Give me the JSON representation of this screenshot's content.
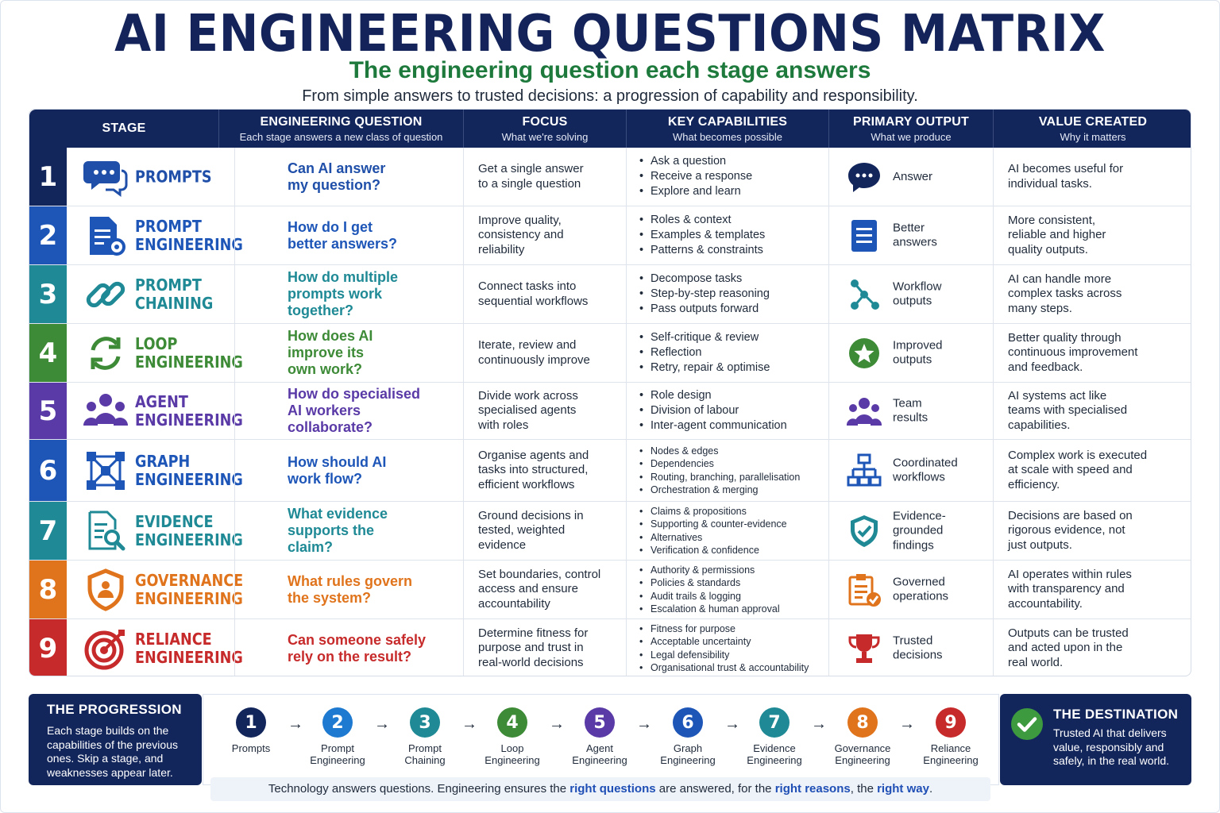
{
  "title": "AI ENGINEERING QUESTIONS MATRIX",
  "subtitle": "The engineering question each stage answers",
  "tagline": "From simple answers to trusted decisions: a progression of capability and responsibility.",
  "headers": [
    {
      "title": "STAGE",
      "sub": ""
    },
    {
      "title": "ENGINEERING QUESTION",
      "sub": "Each stage answers a new class of question"
    },
    {
      "title": "FOCUS",
      "sub": "What we're solving"
    },
    {
      "title": "KEY CAPABILITIES",
      "sub": "What becomes possible"
    },
    {
      "title": "PRIMARY OUTPUT",
      "sub": "What we produce"
    },
    {
      "title": "VALUE CREATED",
      "sub": "Why it matters"
    }
  ],
  "rows": [
    {
      "num": "1",
      "color": "#13265c",
      "accent": "#1f4fa8",
      "stage_icon": "chat-bubbles-icon",
      "stage": "PROMPTS",
      "question": "Can AI answer\nmy question?",
      "focus": "Get a single answer\nto a single question",
      "caps": [
        "Ask a question",
        "Receive a response",
        "Explore and learn"
      ],
      "output_icon": "chat-bubble-icon",
      "output": "Answer",
      "value": "AI becomes useful for\nindividual tasks."
    },
    {
      "num": "2",
      "color": "#1e56b8",
      "accent": "#1e56b8",
      "stage_icon": "document-gear-icon",
      "stage": "PROMPT\nENGINEERING",
      "question": "How do I get\nbetter answers?",
      "focus": "Improve quality,\nconsistency and\nreliability",
      "caps": [
        "Roles & context",
        "Examples & templates",
        "Patterns & constraints"
      ],
      "output_icon": "document-icon",
      "output": "Better\nanswers",
      "value": "More consistent,\nreliable and higher\nquality outputs."
    },
    {
      "num": "3",
      "color": "#1f8a95",
      "accent": "#1f8a95",
      "stage_icon": "chain-link-icon",
      "stage": "PROMPT\nCHAINING",
      "question": "How do multiple\nprompts work\ntogether?",
      "focus": "Connect tasks into\nsequential workflows",
      "caps": [
        "Decompose tasks",
        "Step-by-step reasoning",
        "Pass outputs forward"
      ],
      "output_icon": "workflow-nodes-icon",
      "output": "Workflow\noutputs",
      "value": "AI can handle more\ncomplex tasks across\nmany steps."
    },
    {
      "num": "4",
      "color": "#3d8a37",
      "accent": "#3d8a37",
      "stage_icon": "refresh-loop-icon",
      "stage": "LOOP\nENGINEERING",
      "question": "How does AI\nimprove its\nown work?",
      "focus": "Iterate, review and\ncontinuously improve",
      "caps": [
        "Self-critique & review",
        "Reflection",
        "Retry, repair & optimise"
      ],
      "output_icon": "star-badge-icon",
      "output": "Improved\noutputs",
      "value": "Better quality through\ncontinuous improvement\nand feedback."
    },
    {
      "num": "5",
      "color": "#5a3aa6",
      "accent": "#5a3aa6",
      "stage_icon": "team-people-icon",
      "stage": "AGENT\nENGINEERING",
      "question": "How do specialised\nAI workers\ncollaborate?",
      "focus": "Divide work across\nspecialised agents\nwith roles",
      "caps": [
        "Role design",
        "Division of labour",
        "Inter-agent communication"
      ],
      "output_icon": "team-people-icon",
      "output": "Team\nresults",
      "value": "AI systems act like\nteams with specialised\ncapabilities."
    },
    {
      "num": "6",
      "color": "#1e56b8",
      "accent": "#1e56b8",
      "stage_icon": "graph-network-icon",
      "stage": "GRAPH\nENGINEERING",
      "question": "How should AI\nwork flow?",
      "focus": "Organise agents and\ntasks into structured,\nefficient workflows",
      "caps": [
        "Nodes & edges",
        "Dependencies",
        "Routing, branching, parallelisation",
        "Orchestration & merging"
      ],
      "output_icon": "org-chart-icon",
      "output": "Coordinated\nworkflows",
      "value": "Complex work is executed\nat scale with speed and\nefficiency."
    },
    {
      "num": "7",
      "color": "#1f8a95",
      "accent": "#1f8a95",
      "stage_icon": "document-search-icon",
      "stage": "EVIDENCE\nENGINEERING",
      "question": "What evidence\nsupports the\nclaim?",
      "focus": "Ground decisions in\ntested, weighted\nevidence",
      "caps": [
        "Claims & propositions",
        "Supporting & counter-evidence",
        "Alternatives",
        "Verification & confidence"
      ],
      "output_icon": "shield-check-icon",
      "output": "Evidence-\ngrounded\nfindings",
      "value": "Decisions are based on\nrigorous evidence, not\njust outputs."
    },
    {
      "num": "8",
      "color": "#e0741c",
      "accent": "#e0741c",
      "stage_icon": "shield-person-icon",
      "stage": "GOVERNANCE\nENGINEERING",
      "question": "What rules govern\nthe system?",
      "focus": "Set boundaries, control\naccess and ensure\naccountability",
      "caps": [
        "Authority & permissions",
        "Policies & standards",
        "Audit trails & logging",
        "Escalation & human approval"
      ],
      "output_icon": "clipboard-check-icon",
      "output": "Governed\noperations",
      "value": "AI operates within rules\nwith transparency and\naccountability."
    },
    {
      "num": "9",
      "color": "#c72a2a",
      "accent": "#c72a2a",
      "stage_icon": "target-arrow-icon",
      "stage": "RELIANCE\nENGINEERING",
      "question": "Can someone safely\nrely on the result?",
      "focus": "Determine fitness for\npurpose and trust in\nreal-world decisions",
      "caps": [
        "Fitness for purpose",
        "Acceptable uncertainty",
        "Legal defensibility",
        "Organisational trust & accountability"
      ],
      "output_icon": "trophy-icon",
      "output": "Trusted\ndecisions",
      "value": "Outputs can be trusted\nand acted upon in the\nreal world."
    }
  ],
  "progression": {
    "title": "THE PROGRESSION",
    "description": "Each stage builds on the\ncapabilities of the previous\nones. Skip a stage, and\nweaknesses appear later.",
    "steps": [
      {
        "num": "1",
        "label": "Prompts",
        "color": "#13265c"
      },
      {
        "num": "2",
        "label": "Prompt\nEngineering",
        "color": "#1e7ad0"
      },
      {
        "num": "3",
        "label": "Prompt\nChaining",
        "color": "#1f8a95"
      },
      {
        "num": "4",
        "label": "Loop\nEngineering",
        "color": "#3d8a37"
      },
      {
        "num": "5",
        "label": "Agent\nEngineering",
        "color": "#5a3aa6"
      },
      {
        "num": "6",
        "label": "Graph\nEngineering",
        "color": "#1e56b8"
      },
      {
        "num": "7",
        "label": "Evidence\nEngineering",
        "color": "#1f8a95"
      },
      {
        "num": "8",
        "label": "Governance\nEngineering",
        "color": "#e0741c"
      },
      {
        "num": "9",
        "label": "Reliance\nEngineering",
        "color": "#c72a2a"
      }
    ],
    "arrow": "→"
  },
  "destination": {
    "title": "THE DESTINATION",
    "description": "Trusted AI that delivers\nvalue, responsibly and\nsafely, in the real world.",
    "icon": "check-circle-icon"
  },
  "footer": {
    "p1": "Technology answers questions.  Engineering ensures the ",
    "h1": "right questions",
    "p2": " are answered, for the ",
    "h2": "right reasons",
    "p3": ",  the ",
    "h3": "right way",
    "p4": "."
  }
}
